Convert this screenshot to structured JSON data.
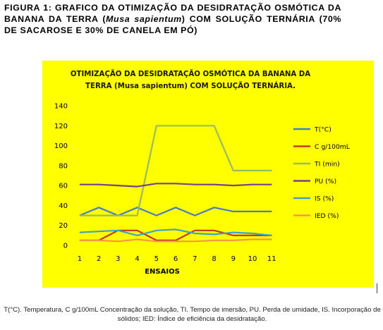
{
  "figure_caption": {
    "part1": "FIGURA 1: GRAFICO DA OTIMIZAÇÃO DA DESIDRATAÇÃO OSMÓTICA DA BANANA DA TERRA (",
    "species": "Musa sapientum",
    "part2": ") COM SOLUÇÃO TERNÁRIA (70% DE SACAROSE E 30% DE CANELA EM PÓ)"
  },
  "footnote": "T(°C). Temperatura, C g/100mL Concentração da solução, TI. Tempo de imersão, PU. Perda de umidade, IS. Incorporação de sólidos; IED: Índice de eficiência da desidratação.",
  "chart_data": {
    "type": "line",
    "title_lines": [
      "OTIMIZAÇÃO DA DESIDRATAÇÃO OSMÓTICA DA BANANA DA",
      "TERRA (Musa sapientum) COM SOLUÇÃO TERNÁRIA."
    ],
    "xlabel": "ENSAIOS",
    "ylabel": "",
    "categories": [
      "1",
      "2",
      "3",
      "4",
      "5",
      "6",
      "7",
      "8",
      "9",
      "10",
      "11"
    ],
    "yticks": [
      0,
      20,
      40,
      60,
      80,
      100,
      120,
      140
    ],
    "ylim": [
      0,
      140
    ],
    "grid": false,
    "legend_position": "right",
    "series": [
      {
        "name": "T(°C)",
        "color": "#4a7dbf",
        "values": [
          30,
          38,
          30,
          38,
          30,
          38,
          30,
          38,
          34,
          34,
          34
        ]
      },
      {
        "name": "C g/100mL",
        "color": "#c0392b",
        "values": [
          5,
          5,
          15,
          15,
          5,
          5,
          15,
          15,
          10,
          10,
          10
        ]
      },
      {
        "name": "TI (min)",
        "color": "#9bbb59",
        "values": [
          30,
          30,
          30,
          30,
          120,
          120,
          120,
          120,
          75,
          75,
          75
        ]
      },
      {
        "name": "PU (%)",
        "color": "#7a3e8f",
        "values": [
          61,
          61,
          60,
          59,
          62,
          62,
          61,
          61,
          60,
          61,
          61
        ]
      },
      {
        "name": "IS (%)",
        "color": "#3aa6c4",
        "values": [
          13,
          14,
          15,
          10,
          15,
          16,
          12,
          11,
          13,
          12,
          10
        ]
      },
      {
        "name": "IED (%)",
        "color": "#f79646",
        "values": [
          5,
          5,
          4,
          6,
          4,
          4,
          4,
          5,
          5,
          6,
          6
        ]
      }
    ]
  }
}
